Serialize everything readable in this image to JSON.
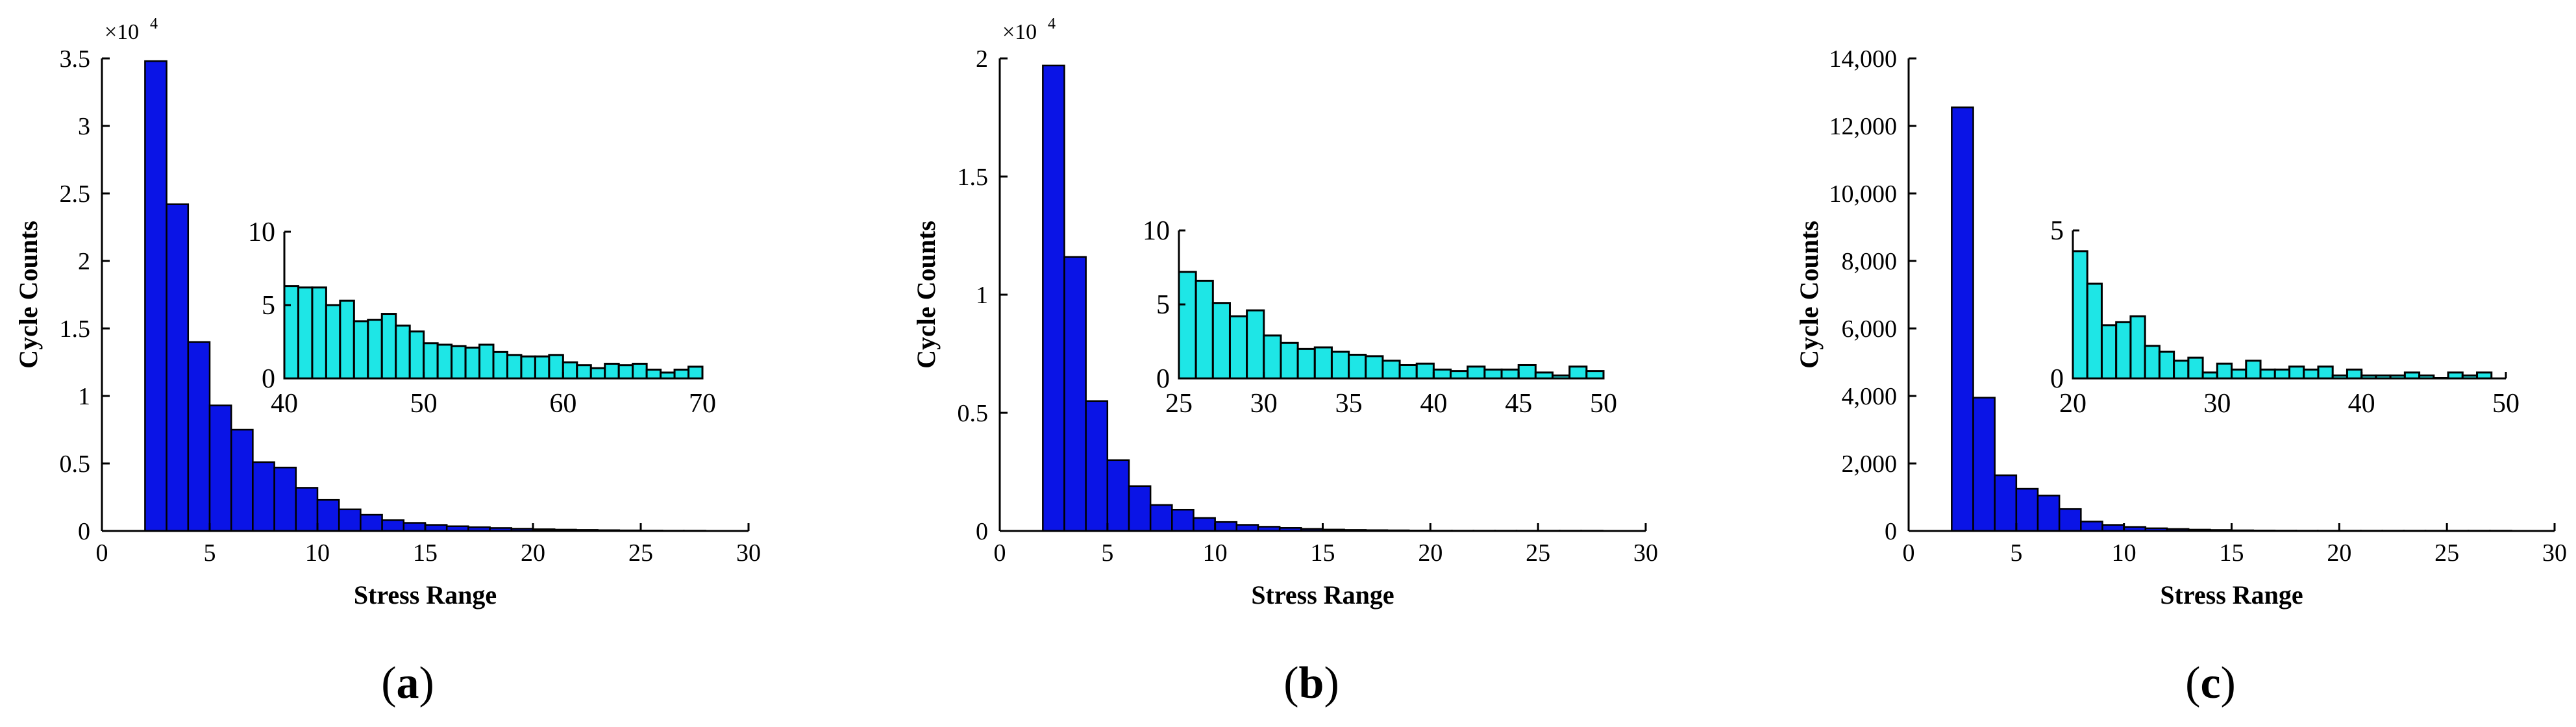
{
  "figure": {
    "panels": [
      "a",
      "b",
      "c"
    ],
    "colors": {
      "main_bar": "#0a14e6",
      "inset_bar": "#1ee6e6",
      "bar_edge": "#000000",
      "axis": "#000000"
    }
  },
  "chart_data": [
    {
      "type": "bar",
      "panel_label": "a",
      "xlabel": "Stress Range",
      "ylabel": "Cycle Counts",
      "multiplier": "×10",
      "multiplier_exp": "4",
      "xlim": [
        0,
        30
      ],
      "ylim": [
        0,
        35000
      ],
      "xticks": [
        0,
        5,
        10,
        15,
        20,
        25,
        30
      ],
      "yticks": [
        0,
        5000,
        10000,
        15000,
        20000,
        25000,
        30000,
        35000
      ],
      "ytick_labels": [
        "0",
        "0.5",
        "1",
        "1.5",
        "2",
        "2.5",
        "3",
        "3.5"
      ],
      "bin_width": 1,
      "x": [
        2.5,
        3.5,
        4.5,
        5.5,
        6.5,
        7.5,
        8.5,
        9.5,
        10.5,
        11.5,
        12.5,
        13.5,
        14.5,
        15.5,
        16.5,
        17.5,
        18.5,
        19.5,
        20.5,
        21.5,
        22.5,
        23.5,
        24.5,
        25.5,
        26.5,
        27.5
      ],
      "values": [
        34800,
        24200,
        14000,
        9300,
        7500,
        5100,
        4700,
        3200,
        2300,
        1600,
        1200,
        800,
        600,
        450,
        350,
        280,
        220,
        170,
        130,
        100,
        80,
        60,
        45,
        35,
        25,
        18
      ],
      "inset": {
        "xlim": [
          40,
          70
        ],
        "ylim": [
          0,
          10
        ],
        "xticks": [
          40,
          50,
          60,
          70
        ],
        "yticks": [
          0,
          5,
          10
        ],
        "bin_width": 1,
        "x": [
          40.5,
          41.5,
          42.5,
          43.5,
          44.5,
          45.5,
          46.5,
          47.5,
          48.5,
          49.5,
          50.5,
          51.5,
          52.5,
          53.5,
          54.5,
          55.5,
          56.5,
          57.5,
          58.5,
          59.5,
          60.5,
          61.5,
          62.5,
          63.5,
          64.5,
          65.5,
          66.5,
          67.5,
          68.5,
          69.5
        ],
        "values": [
          6.3,
          6.2,
          6.2,
          5.0,
          5.3,
          3.9,
          4.0,
          4.4,
          3.6,
          3.2,
          2.4,
          2.3,
          2.2,
          2.1,
          2.3,
          1.8,
          1.6,
          1.5,
          1.5,
          1.6,
          1.1,
          0.9,
          0.7,
          1.0,
          0.9,
          1.0,
          0.6,
          0.4,
          0.6,
          0.8
        ]
      }
    },
    {
      "type": "bar",
      "panel_label": "b",
      "xlabel": "Stress Range",
      "ylabel": "Cycle Counts",
      "multiplier": "×10",
      "multiplier_exp": "4",
      "xlim": [
        0,
        30
      ],
      "ylim": [
        0,
        20000
      ],
      "xticks": [
        0,
        5,
        10,
        15,
        20,
        25,
        30
      ],
      "yticks": [
        0,
        5000,
        10000,
        15000,
        20000
      ],
      "ytick_labels": [
        "0",
        "0.5",
        "1",
        "1.5",
        "2"
      ],
      "bin_width": 1,
      "x": [
        2.5,
        3.5,
        4.5,
        5.5,
        6.5,
        7.5,
        8.5,
        9.5,
        10.5,
        11.5,
        12.5,
        13.5,
        14.5,
        15.5,
        16.5,
        17.5,
        18.5,
        19.5,
        20.5,
        21.5,
        22.5,
        23.5,
        24.5,
        25.5,
        26.5,
        27.5
      ],
      "values": [
        19700,
        11600,
        5500,
        3000,
        1900,
        1100,
        900,
        550,
        380,
        260,
        180,
        130,
        90,
        60,
        45,
        35,
        28,
        20,
        15,
        12,
        10,
        8,
        6,
        5,
        4,
        3
      ],
      "inset": {
        "xlim": [
          25,
          50
        ],
        "ylim": [
          0,
          10
        ],
        "xticks": [
          25,
          30,
          35,
          40,
          45,
          50
        ],
        "yticks": [
          0,
          5,
          10
        ],
        "bin_width": 1,
        "x": [
          25.5,
          26.5,
          27.5,
          28.5,
          29.5,
          30.5,
          31.5,
          32.5,
          33.5,
          34.5,
          35.5,
          36.5,
          37.5,
          38.5,
          39.5,
          40.5,
          41.5,
          42.5,
          43.5,
          44.5,
          45.5,
          46.5,
          47.5,
          48.5,
          49.5
        ],
        "values": [
          7.2,
          6.6,
          5.1,
          4.2,
          4.6,
          2.9,
          2.4,
          2.0,
          2.1,
          1.8,
          1.6,
          1.5,
          1.2,
          0.9,
          1.0,
          0.6,
          0.5,
          0.8,
          0.6,
          0.6,
          0.9,
          0.4,
          0.2,
          0.8,
          0.5
        ]
      }
    },
    {
      "type": "bar",
      "panel_label": "c",
      "xlabel": "Stress Range",
      "ylabel": "Cycle Counts",
      "xlim": [
        0,
        30
      ],
      "ylim": [
        0,
        14000
      ],
      "xticks": [
        0,
        5,
        10,
        15,
        20,
        25,
        30
      ],
      "yticks": [
        0,
        2000,
        4000,
        6000,
        8000,
        10000,
        12000,
        14000
      ],
      "ytick_labels": [
        "0",
        "2,000",
        "4,000",
        "6,000",
        "8,000",
        "10,000",
        "12,000",
        "14,000"
      ],
      "bin_width": 1,
      "x": [
        2.5,
        3.5,
        4.5,
        5.5,
        6.5,
        7.5,
        8.5,
        9.5,
        10.5,
        11.5,
        12.5,
        13.5,
        14.5,
        15.5,
        16.5,
        17.5,
        18.5,
        19.5,
        20.5,
        21.5,
        22.5,
        23.5,
        24.5,
        25.5,
        26.5,
        27.5
      ],
      "values": [
        12550,
        3950,
        1650,
        1250,
        1050,
        650,
        280,
        180,
        120,
        80,
        60,
        40,
        30,
        20,
        15,
        12,
        10,
        8,
        6,
        5,
        4,
        3,
        3,
        2,
        2,
        1
      ],
      "inset": {
        "xlim": [
          20,
          50
        ],
        "ylim": [
          0,
          5
        ],
        "xticks": [
          20,
          30,
          40,
          50
        ],
        "yticks": [
          0,
          5
        ],
        "bin_width": 1,
        "x": [
          20.5,
          21.5,
          22.5,
          23.5,
          24.5,
          25.5,
          26.5,
          27.5,
          28.5,
          29.5,
          30.5,
          31.5,
          32.5,
          33.5,
          34.5,
          35.5,
          36.5,
          37.5,
          38.5,
          39.5,
          40.5,
          41.5,
          42.5,
          43.5,
          44.5,
          45.5,
          46.5,
          47.5,
          48.5
        ],
        "values": [
          4.3,
          3.2,
          1.8,
          1.9,
          2.1,
          1.1,
          0.9,
          0.6,
          0.7,
          0.2,
          0.5,
          0.3,
          0.6,
          0.3,
          0.3,
          0.4,
          0.3,
          0.4,
          0.1,
          0.3,
          0.1,
          0.1,
          0.1,
          0.2,
          0.1,
          0.0,
          0.2,
          0.1,
          0.2
        ]
      }
    }
  ]
}
